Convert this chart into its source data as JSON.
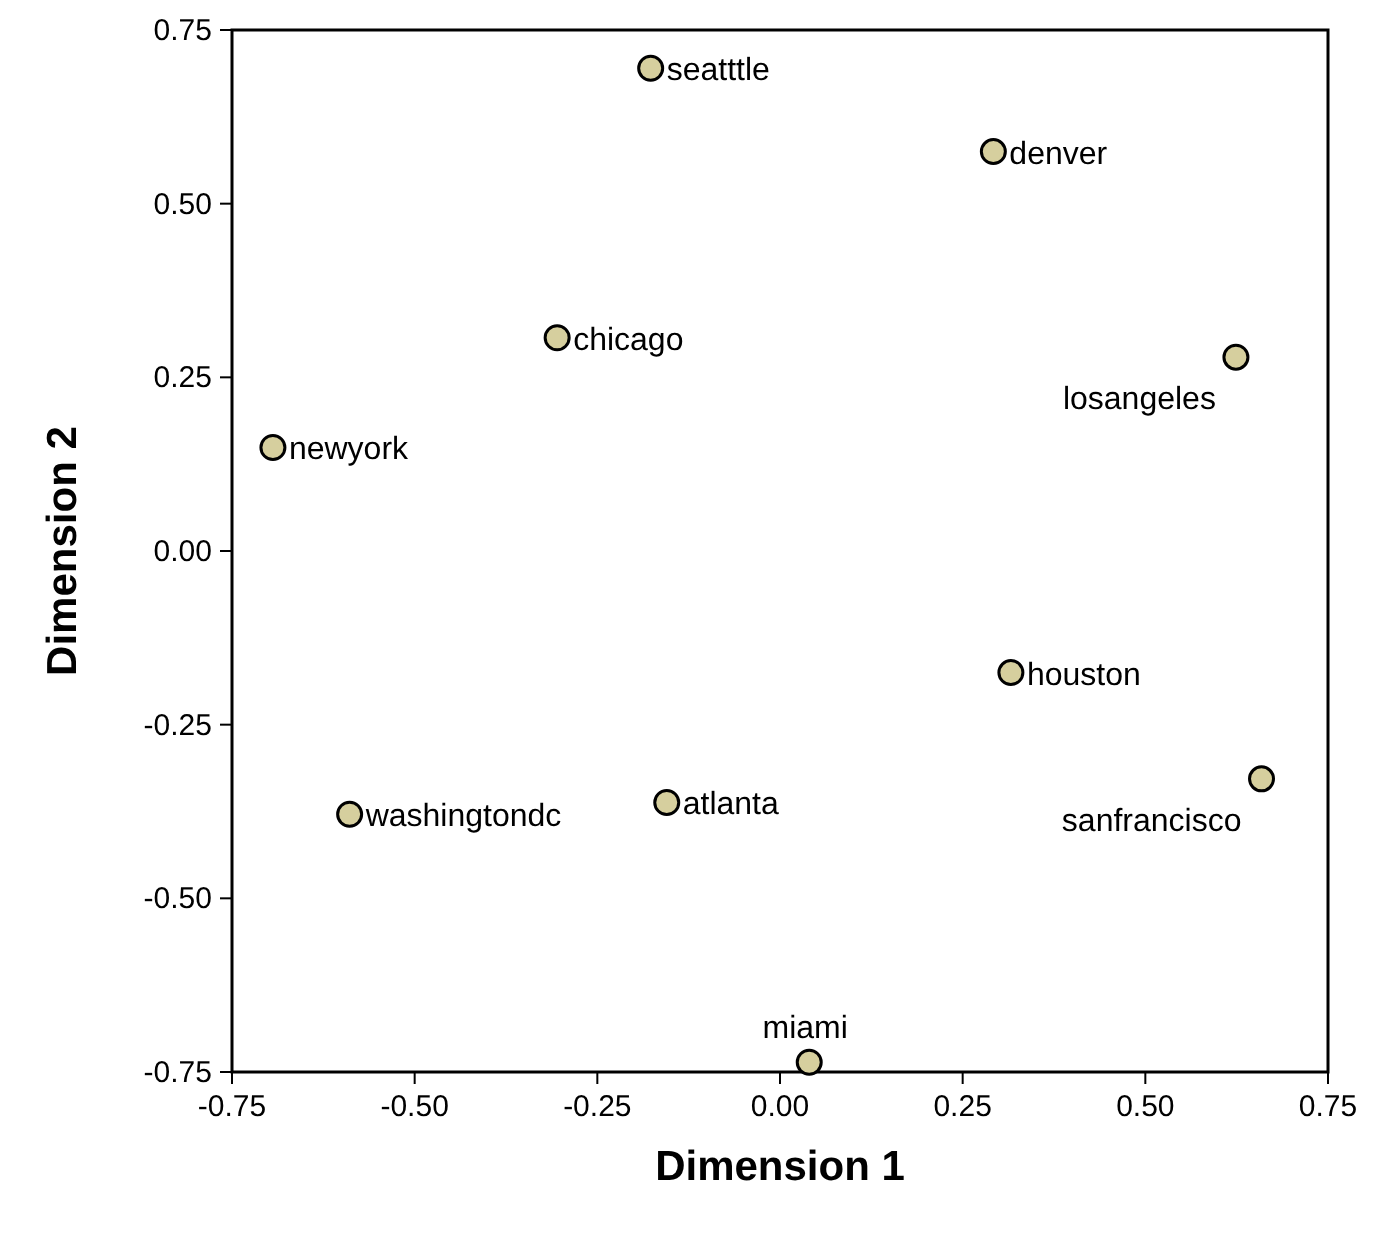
{
  "chart_data": {
    "type": "scatter",
    "xlabel": "Dimension 1",
    "ylabel": "Dimension 2",
    "series": [
      {
        "color": "#d6cf9e",
        "x": [
          -0.177,
          0.292,
          -0.305,
          0.624,
          -0.694,
          0.316,
          0.659,
          -0.589,
          -0.155,
          0.04
        ],
        "values": [
          0.695,
          0.575,
          0.307,
          0.279,
          0.149,
          -0.175,
          -0.328,
          -0.379,
          -0.362,
          -0.736
        ]
      }
    ],
    "annotations": [
      {
        "text": "seatttle",
        "x": -0.177,
        "y": 0.695
      },
      {
        "text": "denver",
        "x": 0.292,
        "y": 0.575
      },
      {
        "text": "chicago",
        "x": -0.305,
        "y": 0.307
      },
      {
        "text": "losangeles",
        "x": 0.624,
        "y": 0.279
      },
      {
        "text": "newyork",
        "x": -0.694,
        "y": 0.149
      },
      {
        "text": "houston",
        "x": 0.316,
        "y": -0.175
      },
      {
        "text": "sanfrancisco",
        "x": 0.659,
        "y": -0.328
      },
      {
        "text": "washingtondc",
        "x": -0.589,
        "y": -0.379
      },
      {
        "text": "atlanta",
        "x": -0.155,
        "y": -0.362
      },
      {
        "text": "miami",
        "x": 0.04,
        "y": -0.736
      }
    ],
    "xlim": [
      -0.75,
      0.75
    ],
    "ylim": [
      -0.75,
      0.75
    ],
    "xticks": [
      {
        "value": -0.75,
        "label": "-0.75"
      },
      {
        "value": -0.5,
        "label": "-0.50"
      },
      {
        "value": -0.25,
        "label": "-0.25"
      },
      {
        "value": 0,
        "label": "0.00"
      },
      {
        "value": 0.25,
        "label": "0.25"
      },
      {
        "value": 0.5,
        "label": "0.50"
      },
      {
        "value": 0.75,
        "label": "0.75"
      }
    ],
    "yticks": [
      {
        "value": -0.75,
        "label": "-0.75"
      },
      {
        "value": -0.5,
        "label": "-0.50"
      },
      {
        "value": -0.25,
        "label": "-0.25"
      },
      {
        "value": 0,
        "label": "0.00"
      },
      {
        "value": 0.25,
        "label": "0.25"
      },
      {
        "value": 0.5,
        "label": "0.50"
      },
      {
        "value": 0.75,
        "label": "0.75"
      }
    ],
    "marker": "circle"
  }
}
